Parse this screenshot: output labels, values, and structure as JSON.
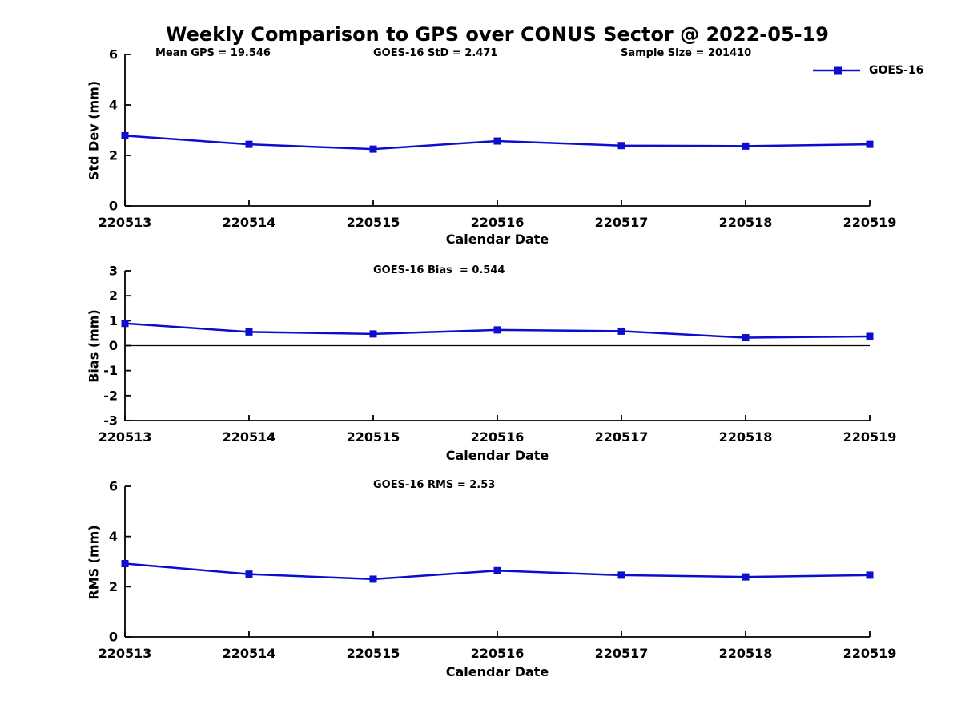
{
  "title": "Weekly Comparison to GPS over CONUS Sector @ 2022-05-19",
  "legend": {
    "label": "GOES-16",
    "position": "top-right",
    "marker": "filled-square"
  },
  "colors": {
    "series": "#0d0dd0",
    "axis": "#000000",
    "text": "#000000",
    "background": "#ffffff"
  },
  "chart_data": [
    {
      "type": "line",
      "id": "stddev",
      "annotations": [
        "Mean GPS = 19.546",
        "GOES-16 StD = 2.471",
        "Sample Size = 201410"
      ],
      "categories": [
        "220513",
        "220514",
        "220515",
        "220516",
        "220517",
        "220518",
        "220519"
      ],
      "series": [
        {
          "name": "GOES-16",
          "values": [
            2.78,
            2.44,
            2.25,
            2.57,
            2.39,
            2.37,
            2.44
          ]
        }
      ],
      "xlabel": "Calendar Date",
      "ylabel": "Std Dev (mm)",
      "ylim": [
        0,
        6
      ],
      "yticks": [
        0,
        2,
        4,
        6
      ],
      "zero_line": false,
      "grid": false
    },
    {
      "type": "line",
      "id": "bias",
      "annotations": [
        "GOES-16 Bias  = 0.544"
      ],
      "categories": [
        "220513",
        "220514",
        "220515",
        "220516",
        "220517",
        "220518",
        "220519"
      ],
      "series": [
        {
          "name": "GOES-16",
          "values": [
            0.89,
            0.55,
            0.47,
            0.63,
            0.58,
            0.32,
            0.37
          ]
        }
      ],
      "xlabel": "Calendar Date",
      "ylabel": "Bias (mm)",
      "ylim": [
        -3,
        3
      ],
      "yticks": [
        -3,
        -2,
        -1,
        0,
        1,
        2,
        3
      ],
      "zero_line": true,
      "grid": false
    },
    {
      "type": "line",
      "id": "rms",
      "annotations": [
        "GOES-16 RMS = 2.53"
      ],
      "categories": [
        "220513",
        "220514",
        "220515",
        "220516",
        "220517",
        "220518",
        "220519"
      ],
      "series": [
        {
          "name": "GOES-16",
          "values": [
            2.92,
            2.5,
            2.3,
            2.64,
            2.46,
            2.39,
            2.46
          ]
        }
      ],
      "xlabel": "Calendar Date",
      "ylabel": "RMS (mm)",
      "ylim": [
        0,
        6
      ],
      "yticks": [
        0,
        2,
        4,
        6
      ],
      "zero_line": false,
      "grid": false
    }
  ]
}
